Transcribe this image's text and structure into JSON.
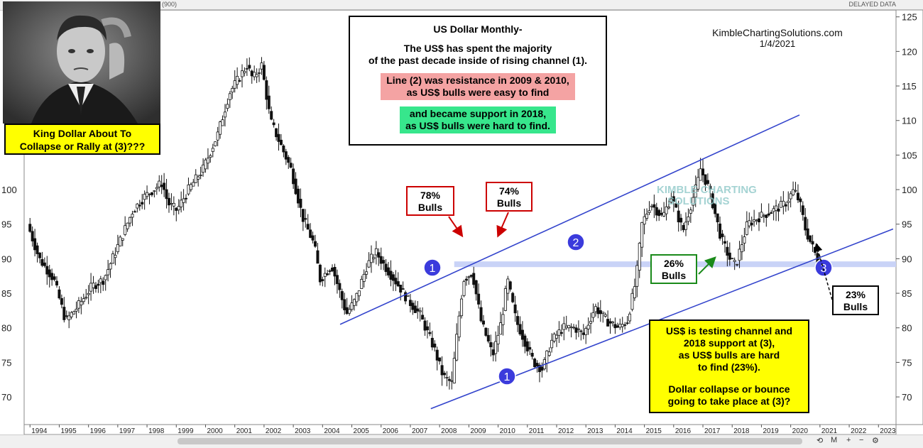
{
  "header": {
    "left_code": "(900)",
    "delayed": "DELAYED DATA",
    "source": "KimbleChartingSolutions.com",
    "date": "1/4/2021"
  },
  "warning": {
    "line1": "King Dollar About To",
    "line2": "Collapse or Rally at (3)???"
  },
  "title_box": {
    "title": "US Dollar Monthly-",
    "line1": "The US$ has spent the majority",
    "line2": "of the past decade inside of rising channel (1).",
    "pink1": "Line (2) was resistance in 2009 & 2010,",
    "pink2": "as US$ bulls were easy to find",
    "green1": "and became support in 2018,",
    "green2": "as US$ bulls were hard to find."
  },
  "callouts": {
    "b78_pct": "78%",
    "b78_label": "Bulls",
    "b74_pct": "74%",
    "b74_label": "Bulls",
    "b26_pct": "26%",
    "b26_label": "Bulls",
    "b23_pct": "23%",
    "b23_label": "Bulls"
  },
  "yellow_box": {
    "l1": "US$ is testing channel and",
    "l2": "2018 support at (3),",
    "l3": "as US$ bulls are hard",
    "l4": "to find (23%).",
    "l5": "Dollar collapse or bounce",
    "l6": "going to take place at (3)?"
  },
  "markers": {
    "m1": "1",
    "m2": "2",
    "m3": "3"
  },
  "colors": {
    "channel": "#3344cc",
    "support_band": "#c9d3f7",
    "marker": "#3b3bdc",
    "red": "#cc0000",
    "green": "#1a8a1a"
  },
  "watermark": {
    "line1": "KIMBLE CHARTING",
    "line2": "SOLUTIONS"
  },
  "toolbar": {
    "reset": "⟲",
    "mode": "M",
    "zoom_in": "+",
    "zoom_out": "−",
    "settings": "⚙"
  },
  "chart_data": {
    "type": "candlestick",
    "title": "US Dollar Monthly-",
    "xlim": [
      1993.8,
      2023.6
    ],
    "ylim": [
      66,
      126
    ],
    "yticks": [
      70,
      75,
      80,
      85,
      90,
      95,
      100,
      105,
      110,
      115,
      120,
      125
    ],
    "xticks": [
      "1994",
      "1995",
      "1996",
      "1997",
      "1998",
      "1999",
      "2000",
      "2001",
      "2002",
      "2003",
      "2004",
      "2005",
      "2006",
      "2007",
      "2008",
      "2009",
      "2010",
      "2011",
      "2012",
      "2013",
      "2014",
      "2015",
      "2016",
      "2017",
      "2018",
      "2019",
      "2020",
      "2021",
      "2022",
      "2023"
    ],
    "price_path": [
      [
        1994.0,
        95
      ],
      [
        1994.4,
        90
      ],
      [
        1994.9,
        87
      ],
      [
        1995.3,
        81
      ],
      [
        1995.7,
        83
      ],
      [
        1996.2,
        86
      ],
      [
        1996.6,
        87
      ],
      [
        1997.1,
        92
      ],
      [
        1997.6,
        97
      ],
      [
        1998.0,
        99
      ],
      [
        1998.6,
        101
      ],
      [
        1998.8,
        98
      ],
      [
        1999.1,
        97
      ],
      [
        1999.5,
        100
      ],
      [
        2000.0,
        103
      ],
      [
        2000.5,
        108
      ],
      [
        2000.9,
        114
      ],
      [
        2001.5,
        118
      ],
      [
        2001.7,
        116
      ],
      [
        2002.0,
        118
      ],
      [
        2002.3,
        110
      ],
      [
        2002.7,
        106
      ],
      [
        2003.0,
        103
      ],
      [
        2003.4,
        96
      ],
      [
        2003.8,
        92
      ],
      [
        2004.0,
        87
      ],
      [
        2004.4,
        89
      ],
      [
        2004.9,
        82
      ],
      [
        2005.2,
        84
      ],
      [
        2005.6,
        89
      ],
      [
        2005.9,
        91
      ],
      [
        2006.2,
        89
      ],
      [
        2006.7,
        86
      ],
      [
        2007.0,
        84
      ],
      [
        2007.4,
        82
      ],
      [
        2007.9,
        77
      ],
      [
        2008.2,
        73
      ],
      [
        2008.5,
        72
      ],
      [
        2008.7,
        80
      ],
      [
        2008.9,
        87
      ],
      [
        2009.2,
        88
      ],
      [
        2009.5,
        81
      ],
      [
        2009.9,
        76
      ],
      [
        2010.2,
        81
      ],
      [
        2010.4,
        87
      ],
      [
        2010.7,
        81
      ],
      [
        2010.9,
        79
      ],
      [
        2011.3,
        75
      ],
      [
        2011.6,
        74
      ],
      [
        2011.9,
        78
      ],
      [
        2012.3,
        80
      ],
      [
        2012.7,
        80
      ],
      [
        2013.0,
        79
      ],
      [
        2013.4,
        83
      ],
      [
        2013.8,
        81
      ],
      [
        2014.2,
        80
      ],
      [
        2014.5,
        81
      ],
      [
        2014.8,
        87
      ],
      [
        2015.0,
        95
      ],
      [
        2015.3,
        98
      ],
      [
        2015.7,
        96
      ],
      [
        2016.0,
        99
      ],
      [
        2016.4,
        94
      ],
      [
        2016.9,
        101
      ],
      [
        2017.0,
        103
      ],
      [
        2017.3,
        100
      ],
      [
        2017.7,
        93
      ],
      [
        2018.0,
        90
      ],
      [
        2018.2,
        89
      ],
      [
        2018.6,
        95
      ],
      [
        2019.0,
        96
      ],
      [
        2019.5,
        97
      ],
      [
        2019.9,
        98
      ],
      [
        2020.2,
        100
      ],
      [
        2020.4,
        98
      ],
      [
        2020.6,
        94
      ],
      [
        2020.8,
        92
      ],
      [
        2021.0,
        89.9
      ]
    ],
    "channel_lines": [
      {
        "name": "channel-upper",
        "from": [
          2004.6,
          80.5
        ],
        "to": [
          2020.3,
          110.8
        ]
      },
      {
        "name": "channel-lower",
        "from": [
          2007.7,
          68.3
        ],
        "to": [
          2023.5,
          94.3
        ]
      }
    ],
    "support_line": {
      "from": [
        2008.5,
        89.2
      ],
      "to": [
        2023.6,
        89.2
      ],
      "label": "2"
    },
    "annotations": [
      {
        "label": "78% Bulls",
        "x": 2008.9
      },
      {
        "label": "74% Bulls",
        "x": 2010.0
      },
      {
        "label": "26% Bulls",
        "x": 2018.2
      },
      {
        "label": "23% Bulls",
        "x": 2020.8
      }
    ],
    "grid": false
  }
}
